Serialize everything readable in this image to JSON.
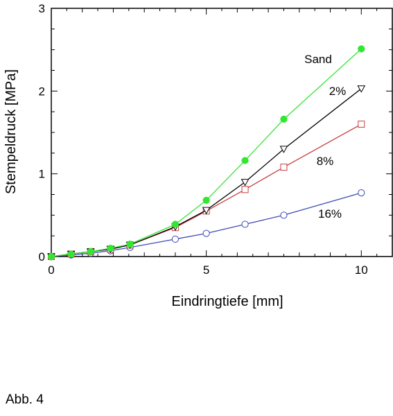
{
  "caption": "Abb. 4",
  "chart_data": {
    "type": "line",
    "title": "",
    "xlabel": "Eindringtiefe  [mm]",
    "ylabel": "Stempeldruck  [MPa]",
    "xlim": [
      0,
      11
    ],
    "ylim": [
      0,
      3
    ],
    "xticks": [
      0,
      5,
      10
    ],
    "yticks": [
      0,
      1,
      2,
      3
    ],
    "grid": false,
    "series": [
      {
        "name": "Sand",
        "color": "#33e633",
        "marker": "filled-circle",
        "x": [
          0,
          0.64,
          1.27,
          1.91,
          2.54,
          4.0,
          5.0,
          6.25,
          7.5,
          10.0
        ],
        "y": [
          0.0,
          0.03,
          0.06,
          0.1,
          0.15,
          0.39,
          0.68,
          1.16,
          1.66,
          2.51
        ]
      },
      {
        "name": "2%",
        "color": "#000000",
        "marker": "triangle-down",
        "x": [
          0,
          0.64,
          1.27,
          1.91,
          2.54,
          4.0,
          5.0,
          6.25,
          7.5,
          10.0
        ],
        "y": [
          0.0,
          0.03,
          0.06,
          0.09,
          0.14,
          0.36,
          0.56,
          0.9,
          1.3,
          2.03
        ]
      },
      {
        "name": "8%",
        "color": "#c83c3c",
        "marker": "open-square",
        "x": [
          0,
          0.64,
          1.27,
          1.91,
          2.54,
          4.0,
          5.0,
          6.25,
          7.5,
          10.0
        ],
        "y": [
          0.0,
          0.03,
          0.06,
          0.09,
          0.14,
          0.35,
          0.55,
          0.81,
          1.08,
          1.6
        ]
      },
      {
        "name": "16%",
        "color": "#3c4bb4",
        "marker": "open-circle",
        "x": [
          0,
          0.64,
          1.27,
          1.91,
          2.54,
          4.0,
          5.0,
          6.25,
          7.5,
          10.0
        ],
        "y": [
          0.0,
          0.02,
          0.04,
          0.07,
          0.11,
          0.21,
          0.28,
          0.39,
          0.5,
          0.77
        ]
      }
    ]
  }
}
